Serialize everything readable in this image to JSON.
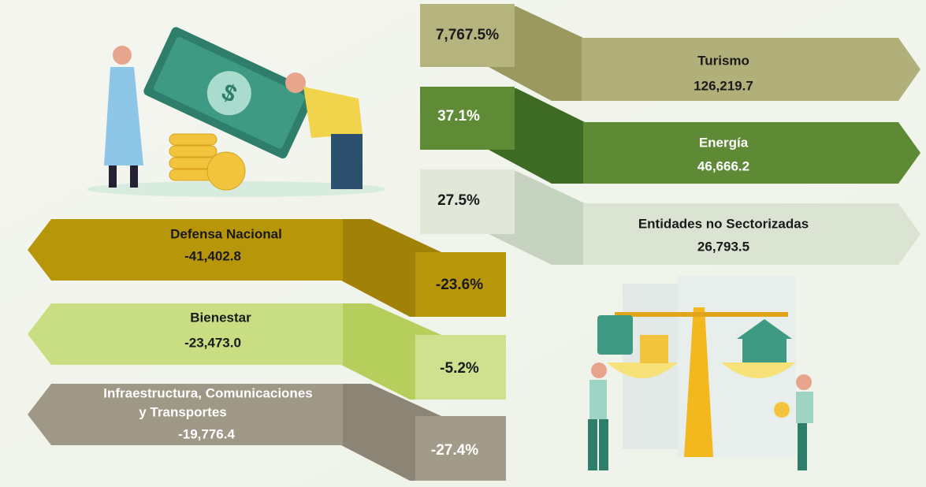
{
  "increases": [
    {
      "percent": "7,767.5%",
      "name": "Turismo",
      "amount": "126,219.7"
    },
    {
      "percent": "37.1%",
      "name": "Energía",
      "amount": "46,666.2"
    },
    {
      "percent": "27.5%",
      "name": "Entidades no Sectorizadas",
      "amount": "26,793.5"
    }
  ],
  "decreases": [
    {
      "percent": "-23.6%",
      "name_lines": [
        "Defensa Nacional"
      ],
      "amount": "-41,402.8"
    },
    {
      "percent": "-5.2%",
      "name_lines": [
        "Bienestar"
      ],
      "amount": "-23,473.0"
    },
    {
      "percent": "-27.4%",
      "name_lines": [
        "Infraestructura, Comunicaciones",
        "y Transportes"
      ],
      "amount": "-19,776.4"
    }
  ]
}
